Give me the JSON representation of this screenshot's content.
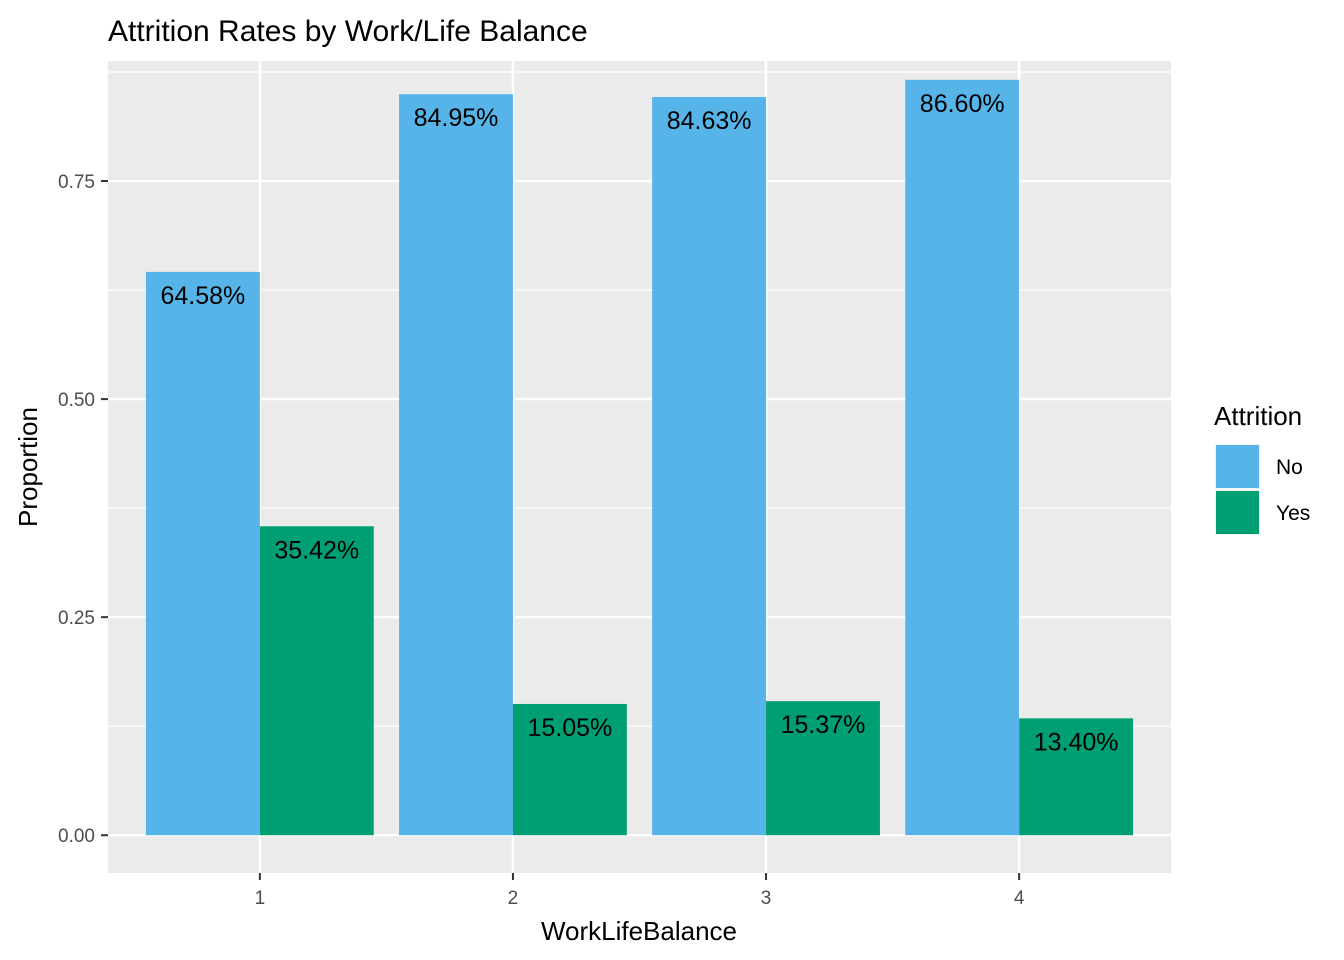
{
  "chart_data": {
    "type": "bar",
    "title": "Attrition Rates by Work/Life Balance",
    "xlabel": "WorkLifeBalance",
    "ylabel": "Proportion",
    "categories": [
      "1",
      "2",
      "3",
      "4"
    ],
    "series": [
      {
        "name": "No",
        "color": "#56B4E9",
        "values": [
          0.6458,
          0.8495,
          0.8463,
          0.866
        ],
        "labels": [
          "64.58%",
          "84.95%",
          "84.63%",
          "86.60%"
        ]
      },
      {
        "name": "Yes",
        "color": "#009E73",
        "values": [
          0.3542,
          0.1505,
          0.1537,
          0.134
        ],
        "labels": [
          "35.42%",
          "15.05%",
          "15.37%",
          "13.40%"
        ]
      }
    ],
    "ylim": [
      -0.0433,
      0.8876
    ],
    "yticks": [
      0,
      0.25,
      0.5,
      0.75
    ],
    "ytick_labels": [
      "0.00",
      "0.25",
      "0.50",
      "0.75"
    ],
    "grid": true,
    "panel_background": "#EBEBEB",
    "legend": {
      "title": "Attrition",
      "position": "right"
    }
  }
}
